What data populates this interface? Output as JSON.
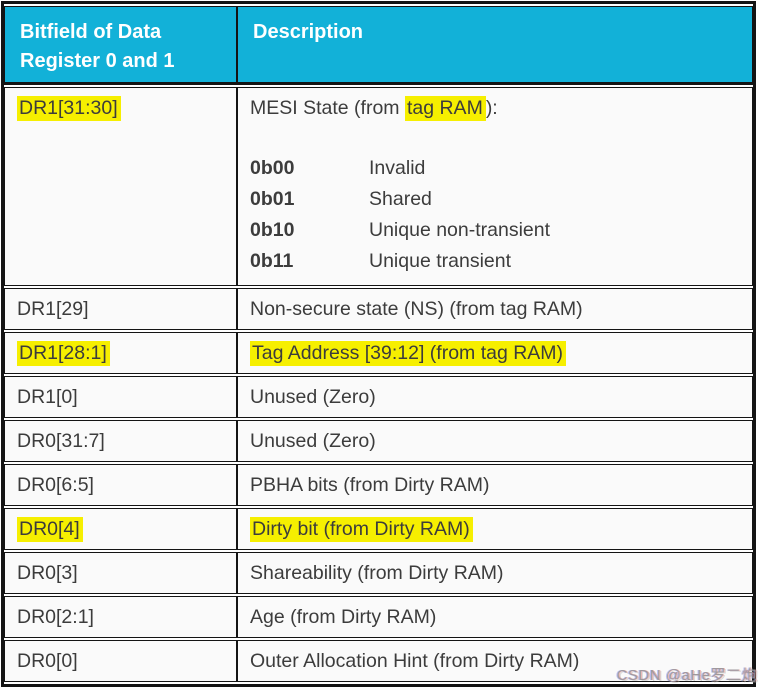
{
  "colors": {
    "header_bg": "#12b1d8",
    "highlight": "#f6ef00",
    "border": "#141414",
    "text": "#3c3c3c",
    "header_text": "#ffffff",
    "cell_bg": "#fafafa"
  },
  "page": {
    "watermark": "CSDN @aHe罗二炮"
  },
  "table": {
    "headers": {
      "bitfield": "Bitfield of Data Register 0 and 1",
      "description": "Description"
    },
    "mesi_row": {
      "bitfield": "DR1[31:30]",
      "desc_prefix": "MESI State (from ",
      "desc_highlight": "tag RAM",
      "desc_suffix": "):",
      "states": [
        {
          "code": "0b00",
          "meaning": "Invalid"
        },
        {
          "code": "0b01",
          "meaning": "Shared"
        },
        {
          "code": "0b10",
          "meaning": "Unique non-transient"
        },
        {
          "code": "0b11",
          "meaning": "Unique transient"
        }
      ]
    },
    "rows": [
      {
        "bitfield": "DR1[29]",
        "description": "Non-secure state (NS) (from tag RAM)",
        "highlighted": false
      },
      {
        "bitfield": "DR1[28:1]",
        "description": "Tag Address [39:12] (from tag RAM)",
        "highlighted": true
      },
      {
        "bitfield": "DR1[0]",
        "description": "Unused (Zero)",
        "highlighted": false
      },
      {
        "bitfield": "DR0[31:7]",
        "description": "Unused (Zero)",
        "highlighted": false
      },
      {
        "bitfield": "DR0[6:5]",
        "description": "PBHA bits (from Dirty RAM)",
        "highlighted": false
      },
      {
        "bitfield": "DR0[4]",
        "description": "Dirty bit (from Dirty RAM)",
        "highlighted": true
      },
      {
        "bitfield": "DR0[3]",
        "description": "Shareability (from Dirty RAM)",
        "highlighted": false
      },
      {
        "bitfield": "DR0[2:1]",
        "description": "Age (from Dirty RAM)",
        "highlighted": false
      },
      {
        "bitfield": "DR0[0]",
        "description": "Outer Allocation Hint (from Dirty RAM)",
        "highlighted": false
      }
    ]
  }
}
